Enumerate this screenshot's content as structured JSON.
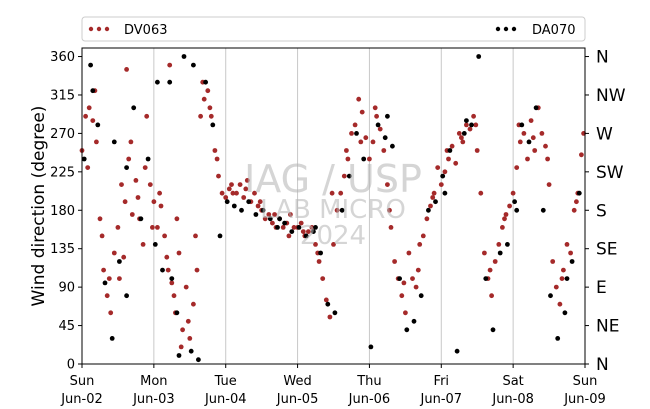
{
  "chart_data": {
    "type": "scatter",
    "ylabel": "Wind direction (degree)",
    "ylim": [
      0,
      370
    ],
    "yticks": [
      0,
      45,
      90,
      135,
      180,
      225,
      270,
      315,
      360
    ],
    "y_right_ticks": [
      {
        "v": 0,
        "label": "N"
      },
      {
        "v": 45,
        "label": "NE"
      },
      {
        "v": 90,
        "label": "E"
      },
      {
        "v": 135,
        "label": "SE"
      },
      {
        "v": 180,
        "label": "S"
      },
      {
        "v": 225,
        "label": "SW"
      },
      {
        "v": 270,
        "label": "W"
      },
      {
        "v": 315,
        "label": "NW"
      },
      {
        "v": 360,
        "label": "N"
      }
    ],
    "xlim": [
      0,
      7
    ],
    "xticks": [
      {
        "v": 0,
        "day": "Sun",
        "date": "Jun-02"
      },
      {
        "v": 1,
        "day": "Mon",
        "date": "Jun-03"
      },
      {
        "v": 2,
        "day": "Tue",
        "date": "Jun-04"
      },
      {
        "v": 3,
        "day": "Wed",
        "date": "Jun-05"
      },
      {
        "v": 4,
        "day": "Thu",
        "date": "Jun-06"
      },
      {
        "v": 5,
        "day": "Fri",
        "date": "Jun-07"
      },
      {
        "v": 6,
        "day": "Sat",
        "date": "Jun-08"
      },
      {
        "v": 7,
        "day": "Sun",
        "date": "Jun-09"
      }
    ],
    "grid_x": true,
    "legend": "top",
    "series": [
      {
        "name": "DV063",
        "color": "#a52a2a",
        "values": [
          [
            0.0,
            250
          ],
          [
            0.05,
            290
          ],
          [
            0.1,
            300
          ],
          [
            0.15,
            285
          ],
          [
            0.2,
            260
          ],
          [
            0.25,
            170
          ],
          [
            0.3,
            110
          ],
          [
            0.35,
            80
          ],
          [
            0.4,
            60
          ],
          [
            0.45,
            130
          ],
          [
            0.5,
            160
          ],
          [
            0.55,
            210
          ],
          [
            0.6,
            190
          ],
          [
            0.65,
            240
          ],
          [
            0.7,
            175
          ],
          [
            0.75,
            215
          ],
          [
            0.8,
            170
          ],
          [
            0.85,
            140
          ],
          [
            0.9,
            290
          ],
          [
            0.95,
            210
          ],
          [
            1.0,
            190
          ],
          [
            1.05,
            160
          ],
          [
            1.1,
            185
          ],
          [
            1.15,
            150
          ],
          [
            1.2,
            110
          ],
          [
            1.25,
            95
          ],
          [
            1.3,
            60
          ],
          [
            1.35,
            130
          ],
          [
            1.4,
            40
          ],
          [
            1.45,
            90
          ],
          [
            1.5,
            30
          ],
          [
            1.55,
            70
          ],
          [
            1.6,
            110
          ],
          [
            1.65,
            290
          ],
          [
            1.7,
            310
          ],
          [
            1.75,
            320
          ],
          [
            1.8,
            290
          ],
          [
            1.85,
            250
          ],
          [
            1.9,
            220
          ],
          [
            1.95,
            200
          ],
          [
            2.0,
            195
          ],
          [
            2.05,
            205
          ],
          [
            2.1,
            200
          ],
          [
            2.15,
            200
          ],
          [
            2.2,
            210
          ],
          [
            2.25,
            195
          ],
          [
            2.3,
            215
          ],
          [
            2.35,
            190
          ],
          [
            2.4,
            200
          ],
          [
            2.45,
            185
          ],
          [
            2.5,
            180
          ],
          [
            2.55,
            170
          ],
          [
            2.6,
            175
          ],
          [
            2.65,
            165
          ],
          [
            2.7,
            160
          ],
          [
            2.75,
            170
          ],
          [
            2.8,
            160
          ],
          [
            2.85,
            165
          ],
          [
            2.9,
            175
          ],
          [
            2.95,
            160
          ],
          [
            3.0,
            160
          ],
          [
            3.05,
            165
          ],
          [
            3.1,
            150
          ],
          [
            3.15,
            155
          ],
          [
            3.2,
            160
          ],
          [
            3.25,
            140
          ],
          [
            3.3,
            120
          ],
          [
            3.35,
            100
          ],
          [
            3.4,
            75
          ],
          [
            3.45,
            55
          ],
          [
            3.5,
            140
          ],
          [
            3.55,
            180
          ],
          [
            3.6,
            200
          ],
          [
            3.65,
            220
          ],
          [
            3.7,
            240
          ],
          [
            3.75,
            270
          ],
          [
            3.8,
            280
          ],
          [
            3.85,
            310
          ],
          [
            3.9,
            295
          ],
          [
            3.95,
            265
          ],
          [
            4.0,
            240
          ],
          [
            4.05,
            260
          ],
          [
            4.1,
            290
          ],
          [
            4.15,
            275
          ],
          [
            4.2,
            250
          ],
          [
            4.25,
            210
          ],
          [
            4.3,
            160
          ],
          [
            4.35,
            120
          ],
          [
            4.4,
            100
          ],
          [
            4.45,
            80
          ],
          [
            4.5,
            60
          ],
          [
            4.55,
            130
          ],
          [
            4.6,
            100
          ],
          [
            4.65,
            90
          ],
          [
            4.7,
            140
          ],
          [
            4.75,
            150
          ],
          [
            4.8,
            170
          ],
          [
            4.85,
            185
          ],
          [
            4.9,
            200
          ],
          [
            4.95,
            230
          ],
          [
            5.0,
            210
          ],
          [
            5.05,
            225
          ],
          [
            5.1,
            240
          ],
          [
            5.15,
            255
          ],
          [
            5.2,
            235
          ],
          [
            5.25,
            270
          ],
          [
            5.3,
            260
          ],
          [
            5.35,
            280
          ],
          [
            5.4,
            275
          ],
          [
            5.45,
            290
          ],
          [
            5.5,
            250
          ],
          [
            5.55,
            200
          ],
          [
            5.6,
            130
          ],
          [
            5.65,
            100
          ],
          [
            5.7,
            80
          ],
          [
            5.75,
            120
          ],
          [
            5.8,
            140
          ],
          [
            5.85,
            160
          ],
          [
            5.9,
            175
          ],
          [
            5.95,
            185
          ],
          [
            6.0,
            200
          ],
          [
            6.05,
            230
          ],
          [
            6.1,
            260
          ],
          [
            6.15,
            270
          ],
          [
            6.2,
            240
          ],
          [
            6.25,
            285
          ],
          [
            6.3,
            250
          ],
          [
            6.35,
            300
          ],
          [
            6.4,
            270
          ],
          [
            6.45,
            255
          ],
          [
            6.5,
            210
          ],
          [
            6.55,
            120
          ],
          [
            6.6,
            90
          ],
          [
            6.65,
            70
          ],
          [
            6.7,
            110
          ],
          [
            6.75,
            140
          ],
          [
            6.8,
            130
          ],
          [
            6.85,
            180
          ],
          [
            6.9,
            200
          ],
          [
            6.95,
            245
          ],
          [
            0.08,
            230
          ],
          [
            0.18,
            320
          ],
          [
            0.28,
            150
          ],
          [
            0.38,
            100
          ],
          [
            0.58,
            125
          ],
          [
            0.68,
            260
          ],
          [
            0.78,
            195
          ],
          [
            0.88,
            230
          ],
          [
            0.98,
            160
          ],
          [
            1.08,
            200
          ],
          [
            1.18,
            125
          ],
          [
            1.28,
            80
          ],
          [
            1.38,
            20
          ],
          [
            1.48,
            50
          ],
          [
            1.58,
            150
          ],
          [
            1.68,
            330
          ],
          [
            1.78,
            300
          ],
          [
            1.88,
            240
          ],
          [
            2.08,
            210
          ],
          [
            2.28,
            205
          ],
          [
            2.48,
            190
          ],
          [
            2.68,
            175
          ],
          [
            2.88,
            150
          ],
          [
            3.08,
            155
          ],
          [
            3.28,
            130
          ],
          [
            3.48,
            200
          ],
          [
            3.68,
            250
          ],
          [
            3.88,
            260
          ],
          [
            4.08,
            300
          ],
          [
            4.28,
            180
          ],
          [
            4.48,
            95
          ],
          [
            4.68,
            110
          ],
          [
            4.88,
            195
          ],
          [
            5.08,
            250
          ],
          [
            5.28,
            265
          ],
          [
            5.48,
            280
          ],
          [
            5.68,
            110
          ],
          [
            5.88,
            170
          ],
          [
            6.08,
            280
          ],
          [
            6.28,
            265
          ],
          [
            6.48,
            240
          ],
          [
            6.68,
            100
          ],
          [
            6.88,
            190
          ],
          [
            6.98,
            270
          ],
          [
            1.22,
            350
          ],
          [
            1.32,
            170
          ],
          [
            0.52,
            100
          ],
          [
            0.62,
            345
          ]
        ]
      },
      {
        "name": "DA070",
        "color": "#000000",
        "values": [
          [
            0.03,
            240
          ],
          [
            0.12,
            350
          ],
          [
            0.22,
            280
          ],
          [
            0.32,
            95
          ],
          [
            0.42,
            30
          ],
          [
            0.52,
            120
          ],
          [
            0.62,
            230
          ],
          [
            0.72,
            300
          ],
          [
            0.82,
            170
          ],
          [
            0.92,
            240
          ],
          [
            1.02,
            140
          ],
          [
            1.12,
            110
          ],
          [
            1.22,
            330
          ],
          [
            1.32,
            60
          ],
          [
            1.42,
            360
          ],
          [
            1.52,
            15
          ],
          [
            1.62,
            5
          ],
          [
            1.72,
            330
          ],
          [
            1.82,
            280
          ],
          [
            1.92,
            150
          ],
          [
            2.02,
            190
          ],
          [
            2.12,
            185
          ],
          [
            2.22,
            180
          ],
          [
            2.32,
            190
          ],
          [
            2.42,
            175
          ],
          [
            2.52,
            180
          ],
          [
            2.62,
            170
          ],
          [
            2.72,
            160
          ],
          [
            2.82,
            165
          ],
          [
            2.92,
            155
          ],
          [
            3.02,
            160
          ],
          [
            3.12,
            150
          ],
          [
            3.22,
            155
          ],
          [
            3.32,
            130
          ],
          [
            3.42,
            70
          ],
          [
            3.52,
            60
          ],
          [
            3.62,
            180
          ],
          [
            3.72,
            220
          ],
          [
            3.82,
            270
          ],
          [
            3.92,
            240
          ],
          [
            4.02,
            20
          ],
          [
            4.12,
            280
          ],
          [
            4.22,
            265
          ],
          [
            4.32,
            255
          ],
          [
            4.42,
            100
          ],
          [
            4.52,
            40
          ],
          [
            4.62,
            50
          ],
          [
            4.72,
            80
          ],
          [
            4.82,
            180
          ],
          [
            4.92,
            190
          ],
          [
            5.02,
            220
          ],
          [
            5.12,
            250
          ],
          [
            5.22,
            15
          ],
          [
            5.32,
            270
          ],
          [
            5.42,
            280
          ],
          [
            5.52,
            360
          ],
          [
            5.62,
            100
          ],
          [
            5.72,
            40
          ],
          [
            5.82,
            130
          ],
          [
            5.92,
            140
          ],
          [
            6.02,
            190
          ],
          [
            6.12,
            280
          ],
          [
            6.22,
            260
          ],
          [
            6.32,
            300
          ],
          [
            6.42,
            180
          ],
          [
            6.52,
            80
          ],
          [
            6.62,
            30
          ],
          [
            6.72,
            60
          ],
          [
            6.82,
            120
          ],
          [
            6.92,
            200
          ],
          [
            0.15,
            320
          ],
          [
            0.45,
            260
          ],
          [
            1.05,
            330
          ],
          [
            1.25,
            100
          ],
          [
            1.55,
            350
          ],
          [
            2.75,
            170
          ],
          [
            3.25,
            160
          ],
          [
            4.25,
            290
          ],
          [
            5.05,
            200
          ],
          [
            5.35,
            285
          ],
          [
            6.05,
            180
          ],
          [
            6.75,
            100
          ],
          [
            0.62,
            80
          ],
          [
            1.35,
            10
          ]
        ]
      }
    ]
  },
  "watermark": {
    "line1": "IAG / USP",
    "line2": "LAB MICRO",
    "line3": "2024"
  }
}
